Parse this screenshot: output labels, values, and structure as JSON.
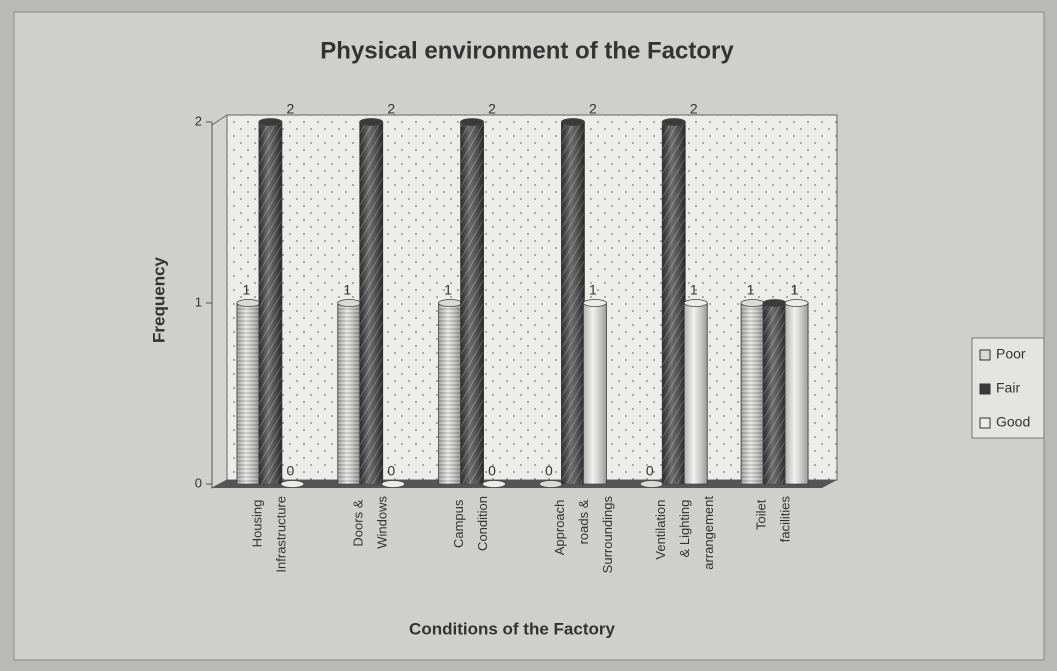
{
  "chart_data": {
    "type": "bar3d",
    "title": "Physical environment of the Factory",
    "x_label": "Conditions of the Factory",
    "y_label": "Frequency",
    "categories": [
      "Housing Infrastructure",
      "Doors & Windows",
      "Campus Condition",
      "Approach roads & Surroundings",
      "Ventilation & Lighting arrangement",
      "Toilet facilities"
    ],
    "series": [
      {
        "name": "Poor",
        "color": "#d9d9d6",
        "values": [
          1,
          1,
          1,
          0,
          0,
          1
        ]
      },
      {
        "name": "Fair",
        "color": "#3b3b3b",
        "values": [
          2,
          2,
          2,
          2,
          2,
          1
        ]
      },
      {
        "name": "Good",
        "color": "#ebebe8",
        "values": [
          0,
          0,
          0,
          1,
          1,
          1
        ]
      }
    ],
    "ylim": [
      0,
      2
    ],
    "yticks": [
      0,
      1,
      2
    ],
    "legend": "right"
  }
}
